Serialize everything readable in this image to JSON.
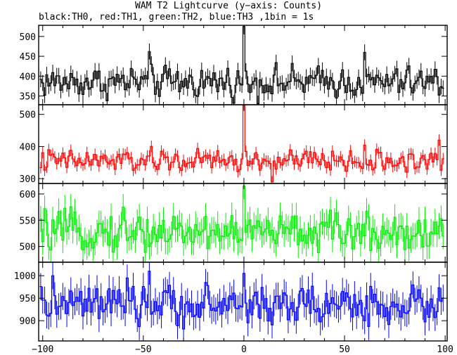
{
  "figure": {
    "title": "WAM T2 Lightcurve (y−axis: Counts)",
    "subtitle": "black:TH0, red:TH1, green:TH2, blue:TH3 ,1bin = 1s"
  },
  "chart_data": {
    "type": "line",
    "style": "step-with-error-bars",
    "x_range": [
      -102,
      101
    ],
    "x_ticks": [
      -100,
      -50,
      0,
      50,
      100
    ],
    "grid": false,
    "panels": [
      {
        "channel": "TH0",
        "color": "#000000",
        "ylim": [
          328,
          528
        ],
        "y_ticks": [
          350,
          400,
          450,
          500
        ],
        "error": 20,
        "baseline": 385,
        "noise": 20,
        "peak": 525,
        "spikes": [
          {
            "x": -47,
            "y": 462
          },
          {
            "x": 60,
            "y": 460
          },
          {
            "x": 0,
            "y": 525
          }
        ]
      },
      {
        "channel": "TH1",
        "color": "#ff0000",
        "ylim": [
          285,
          530
        ],
        "y_ticks": [
          300,
          400,
          500
        ],
        "error": 18,
        "baseline": 355,
        "noise": 18,
        "peak": 528,
        "spikes": [
          {
            "x": 0,
            "y": 528
          },
          {
            "x": 14,
            "y": 290
          },
          {
            "x": 97,
            "y": 420
          }
        ]
      },
      {
        "channel": "TH2",
        "color": "#00ee00",
        "ylim": [
          470,
          620
        ],
        "y_ticks": [
          500,
          550,
          600
        ],
        "error": 25,
        "baseline": 528,
        "noise": 18,
        "peak": 615,
        "spikes": [
          {
            "x": 0,
            "y": 615
          },
          {
            "x": -60,
            "y": 575
          }
        ]
      },
      {
        "channel": "TH3",
        "color": "#0000ff",
        "ylim": [
          855,
          1030
        ],
        "y_ticks": [
          900,
          950,
          1000
        ],
        "error": 30,
        "baseline": 935,
        "noise": 22,
        "peak": 1010,
        "spikes": [
          {
            "x": -47,
            "y": 1010
          },
          {
            "x": 0,
            "y": 1005
          },
          {
            "x": -95,
            "y": 1000
          }
        ]
      }
    ]
  }
}
